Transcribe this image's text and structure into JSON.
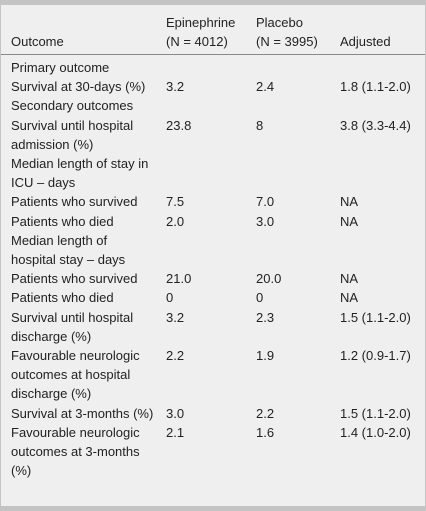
{
  "table": {
    "headers": [
      {
        "line1": "",
        "line2": "Outcome"
      },
      {
        "line1": "Epinephrine",
        "line2": "(N = 4012)"
      },
      {
        "line1": "Placebo",
        "line2": "(N = 3995)"
      },
      {
        "line1": "",
        "line2": "Adjusted"
      }
    ],
    "rows": [
      {
        "outcome": "Primary outcome",
        "epinephrine": "",
        "placebo": "",
        "adjusted": ""
      },
      {
        "outcome": "Survival at 30-days (%)",
        "epinephrine": "3.2",
        "placebo": "2.4",
        "adjusted": "1.8 (1.1-2.0)"
      },
      {
        "outcome": "Secondary outcomes",
        "epinephrine": "",
        "placebo": "",
        "adjusted": ""
      },
      {
        "outcome": "Survival until hospital admission (%)",
        "epinephrine": "23.8",
        "placebo": "8",
        "adjusted": "3.8 (3.3-4.4)"
      },
      {
        "outcome": "Median length of stay in ICU – days",
        "epinephrine": "",
        "placebo": "",
        "adjusted": ""
      },
      {
        "outcome": "Patients who survived",
        "epinephrine": "7.5",
        "placebo": "7.0",
        "adjusted": "NA"
      },
      {
        "outcome": "Patients who died",
        "epinephrine": "2.0",
        "placebo": "3.0",
        "adjusted": "NA"
      },
      {
        "outcome": "Median length of hospital stay – days",
        "epinephrine": "",
        "placebo": "",
        "adjusted": ""
      },
      {
        "outcome": "Patients who survived",
        "epinephrine": "21.0",
        "placebo": "20.0",
        "adjusted": "NA"
      },
      {
        "outcome": "Patients who died",
        "epinephrine": "0",
        "placebo": "0",
        "adjusted": "NA"
      },
      {
        "outcome": "Survival until hospital discharge (%)",
        "epinephrine": "3.2",
        "placebo": "2.3",
        "adjusted": "1.5 (1.1-2.0)"
      },
      {
        "outcome": "Favourable neurologic outcomes at hospital discharge (%)",
        "epinephrine": "2.2",
        "placebo": "1.9",
        "adjusted": "1.2 (0.9-1.7)"
      },
      {
        "outcome": "Survival at 3-months (%)",
        "epinephrine": "3.0",
        "placebo": "2.2",
        "adjusted": "1.5 (1.1-2.0)"
      },
      {
        "outcome": "Favourable neurologic outcomes at 3-months (%)",
        "epinephrine": "2.1",
        "placebo": "1.6",
        "adjusted": "1.4 (1.0-2.0)"
      }
    ]
  },
  "colors": {
    "background": "#efefef",
    "border": "#c4c4c4",
    "rule": "#8a8a8a",
    "text": "#222222"
  }
}
